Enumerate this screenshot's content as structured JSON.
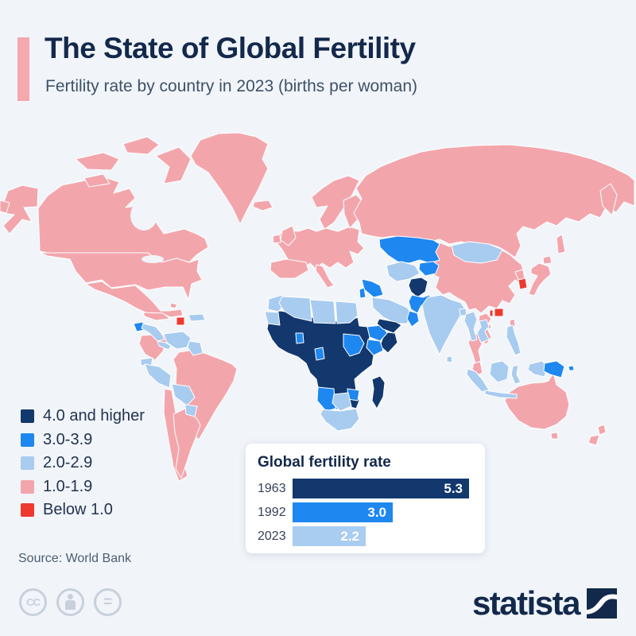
{
  "header": {
    "title": "The State of Global Fertility",
    "subtitle": "Fertility rate by country in 2023 (births per woman)",
    "accent_color": "#f5a8ad"
  },
  "legend": {
    "items": [
      {
        "label": "4.0 and higher",
        "color": "#12386e"
      },
      {
        "label": "3.0-3.9",
        "color": "#1e87f0"
      },
      {
        "label": "2.0-2.9",
        "color": "#a8cbf0"
      },
      {
        "label": "1.0-1.9",
        "color": "#f2a6ac"
      },
      {
        "label": "Below 1.0",
        "color": "#ee3a2e"
      }
    ]
  },
  "source": {
    "text": "Source: World Bank"
  },
  "inset": {
    "title": "Global fertility rate",
    "rows": [
      {
        "year": "1963",
        "value": "5.3",
        "color": "#12386e"
      },
      {
        "year": "1992",
        "value": "3.0",
        "color": "#1e87f0"
      },
      {
        "year": "2023",
        "value": "2.2",
        "color": "#a9ccf1"
      }
    ]
  },
  "footer": {
    "brand": "statista",
    "cc_label": "CC",
    "equal_label": "=",
    "navy": "#13294b"
  },
  "chart_data": [
    {
      "type": "choropleth",
      "title": "Fertility rate by country in 2023 (births per woman)",
      "legend": [
        {
          "label": "4.0 and higher",
          "color": "#12386e"
        },
        {
          "label": "3.0-3.9",
          "color": "#1e87f0"
        },
        {
          "label": "2.0-2.9",
          "color": "#a8cbf0"
        },
        {
          "label": "1.0-1.9",
          "color": "#f2a6ac"
        },
        {
          "label": "Below 1.0",
          "color": "#ee3a2e"
        }
      ],
      "regions": {
        "alaska": "1.0-1.9",
        "canada": "1.0-1.9",
        "arctic1": "1.0-1.9",
        "arctic2": "1.0-1.9",
        "baffin": "1.0-1.9",
        "arctic3": "1.0-1.9",
        "greenland": "1.0-1.9",
        "iceland": "1.0-1.9",
        "usa": "1.0-1.9",
        "mexico": "1.0-1.9",
        "cuba": "1.0-1.9",
        "bahamas": "1.0-1.9",
        "colombia": "1.0-1.9",
        "brazil": "1.0-1.9",
        "chile": "1.0-1.9",
        "argentina": "1.0-1.9",
        "europe": "1.0-1.9",
        "iberia": "1.0-1.9",
        "italy": "1.0-1.9",
        "uk": "1.0-1.9",
        "ireland": "1.0-1.9",
        "scandinavia": "1.0-1.9",
        "finland": "1.0-1.9",
        "russia": "1.0-1.9",
        "kamchatka": "1.0-1.9",
        "sakhalin": "1.0-1.9",
        "chukotka": "1.0-1.9",
        "china": "1.0-1.9",
        "north-korea": "1.0-1.9",
        "japan": "1.0-1.9",
        "hokkaido": "1.0-1.9",
        "taiwan": "1.0-1.9",
        "vietnam": "1.0-1.9",
        "thailand": "1.0-1.9",
        "malaysia": "1.0-1.9",
        "hainan": "1.0-1.9",
        "australia": "1.0-1.9",
        "tasmania": "1.0-1.9",
        "nz-north": "1.0-1.9",
        "nz-south": "1.0-1.9",
        "venezuela": "2.0-2.9",
        "guyanas": "2.0-2.9",
        "ecuador": "2.0-2.9",
        "peru": "2.0-2.9",
        "bolivia": "2.0-2.9",
        "paraguay": "2.0-2.9",
        "hispaniola": "2.0-2.9",
        "honduras-nicaragua": "2.0-2.9",
        "costa-panama": "2.0-2.9",
        "morocco": "2.0-2.9",
        "algeria": "2.0-2.9",
        "libya": "2.0-2.9",
        "egypt": "2.0-2.9",
        "mauritania": "2.0-2.9",
        "saudi-arabia": "2.0-2.9",
        "mongolia": "2.0-2.9",
        "uzbek-turkmen": "2.0-2.9",
        "india": "2.0-2.9",
        "sri-lanka": "2.0-2.9",
        "bangladesh": "2.0-2.9",
        "myanmar": "2.0-2.9",
        "laos-cambodia": "2.0-2.9",
        "sumatra": "2.0-2.9",
        "java": "2.0-2.9",
        "borneo": "2.0-2.9",
        "sulawesi": "2.0-2.9",
        "philippines": "2.0-2.9",
        "west-papua": "2.0-2.9",
        "botswana": "2.0-2.9",
        "south-africa": "2.0-2.9",
        "kazakhstan": "3.0-3.9",
        "kyrgyz-tajik": "3.0-3.9",
        "pakistan": "3.0-3.9",
        "iraq-syria": "3.0-3.9",
        "jordan-israel": "3.0-3.9",
        "oman": "3.0-3.9",
        "guatemala": "3.0-3.9",
        "ghana": "3.0-3.9",
        "gabon": "3.0-3.9",
        "ethiopia": "3.0-3.9",
        "kenya": "3.0-3.9",
        "zimbabwe": "3.0-3.9",
        "namibia": "3.0-3.9",
        "papua-new-guinea": "3.0-3.9",
        "solomon": "3.0-3.9",
        "south-sudan-uganda": "3.0-3.9",
        "africa-main": "4.0 and higher",
        "somalia": "4.0 and higher",
        "madagascar": "4.0 and higher",
        "afghanistan": "4.0 and higher",
        "yemen": "4.0 and higher",
        "south-korea": "Below 1.0",
        "puerto-rico-marker": "Below 1.0",
        "hong-kong-marker": "Below 1.0",
        "macau-marker": "Below 1.0"
      }
    },
    {
      "type": "bar",
      "title": "Global fertility rate",
      "categories": [
        "1963",
        "1992",
        "2023"
      ],
      "values": [
        5.3,
        3.0,
        2.2
      ],
      "orientation": "horizontal",
      "xlim": [
        0,
        5.5
      ],
      "bar_colors": [
        "#12386e",
        "#1e87f0",
        "#a9ccf1"
      ],
      "legend_position": "none"
    }
  ]
}
